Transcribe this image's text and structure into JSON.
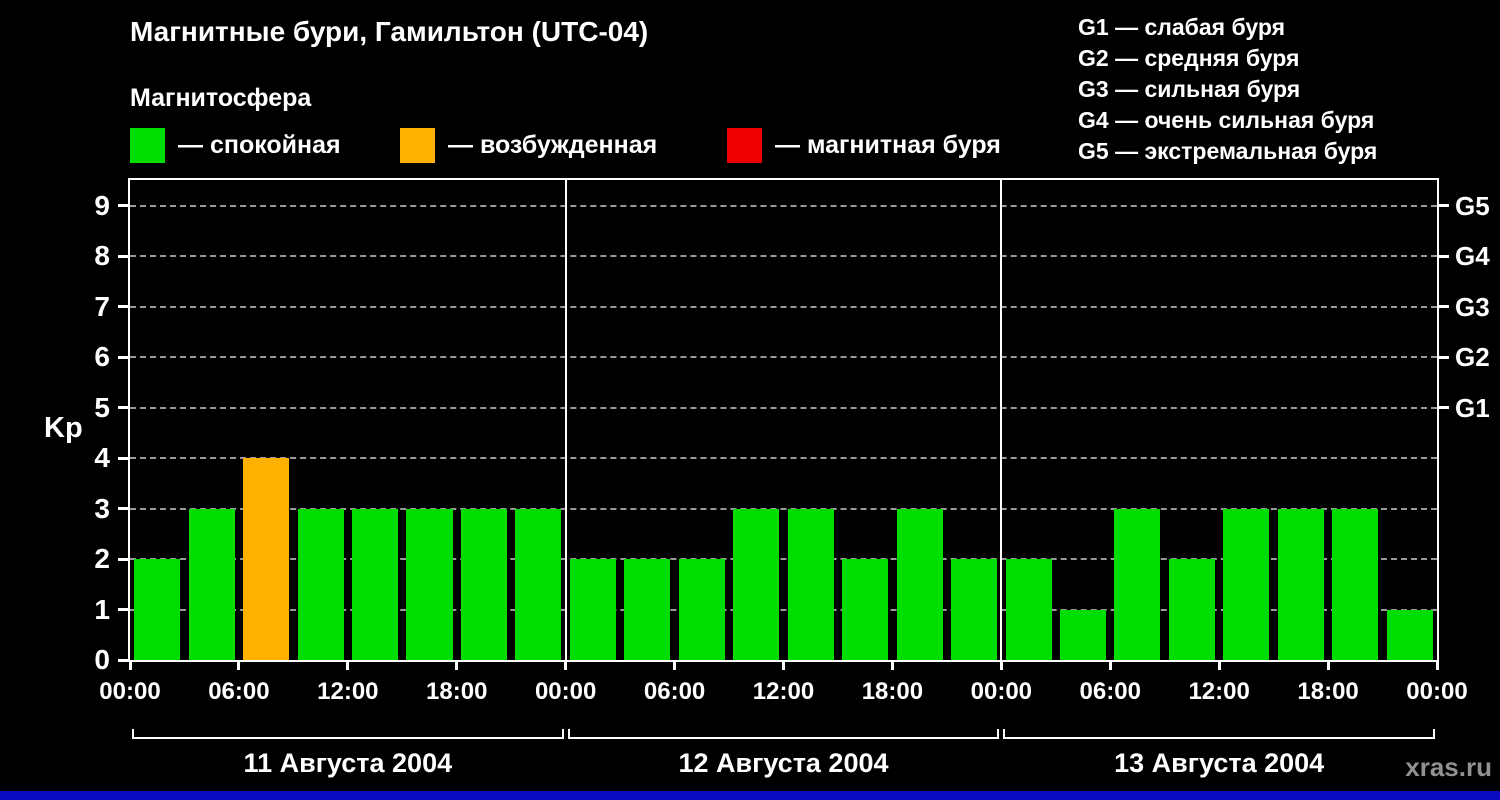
{
  "header": {
    "title": "Магнитные бури, Гамильтон (UTC-04)",
    "subtitle": "Магнитосфера"
  },
  "legend": {
    "items": [
      {
        "label": "— спокойная",
        "color": "#00dd00"
      },
      {
        "label": "— возбужденная",
        "color": "#ffb000"
      },
      {
        "label": "— магнитная буря",
        "color": "#ee0000"
      }
    ]
  },
  "g_legend": {
    "items": [
      "G1 — слабая буря",
      "G2 — средняя буря",
      "G3 — сильная буря",
      "G4 — очень сильная буря",
      "G5 — экстремальная буря"
    ]
  },
  "chart_data": {
    "type": "bar",
    "title": "Магнитные бури, Гамильтон (UTC-04)",
    "ylabel": "Kp",
    "ylim": [
      0,
      9.5
    ],
    "y_ticks": [
      0,
      1,
      2,
      3,
      4,
      5,
      6,
      7,
      8,
      9
    ],
    "right_axis": {
      "labels": [
        "G5",
        "G4",
        "G3",
        "G2",
        "G1"
      ],
      "values": [
        9,
        8,
        7,
        6,
        5
      ]
    },
    "x_tick_labels": [
      "00:00",
      "06:00",
      "12:00",
      "18:00",
      "00:00",
      "06:00",
      "12:00",
      "18:00",
      "00:00",
      "06:00",
      "12:00",
      "18:00",
      "00:00"
    ],
    "bar_interval_hours": 3,
    "days": [
      {
        "date": "11 Августа 2004",
        "values": [
          2,
          3,
          4,
          3,
          3,
          3,
          3,
          3
        ]
      },
      {
        "date": "12 Августа 2004",
        "values": [
          2,
          2,
          2,
          3,
          3,
          2,
          3,
          2
        ]
      },
      {
        "date": "13 Августа 2004",
        "values": [
          2,
          1,
          3,
          2,
          3,
          3,
          3,
          1
        ]
      }
    ],
    "color_rules": {
      "quiet_max_kp": 3,
      "excited_max_kp": 4,
      "quiet": "#00dd00",
      "excited": "#ffb000",
      "storm": "#ee0000"
    },
    "grid": "dashed horizontal lines at Kp 1-9",
    "legend_position": "top"
  },
  "watermark": "xras.ru",
  "colors": {
    "background": "#000000",
    "axis": "#ffffff",
    "grid": "#999999",
    "bottom_strip": "#0a0ac0"
  }
}
